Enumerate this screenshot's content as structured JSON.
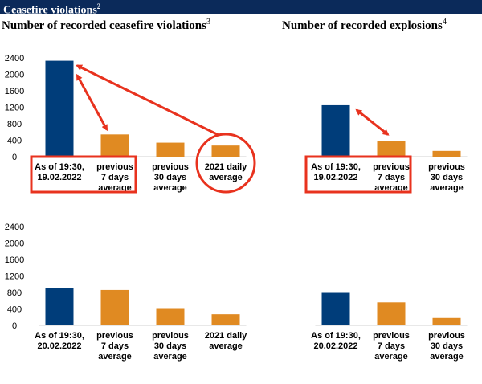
{
  "header": {
    "title": "Ceasefire violations",
    "footnote": "2"
  },
  "titles": {
    "violations": "Number of recorded ceasefire violations",
    "violations_footnote": "3",
    "explosions": "Number of recorded explosions",
    "explosions_footnote": "4"
  },
  "colors": {
    "current": "#003d7a",
    "past": "#e08a22",
    "highlight": "#e8321e"
  },
  "chart_data": [
    {
      "type": "bar",
      "title": "Number of recorded ceasefire violations",
      "categories": [
        [
          "As of 19:30,",
          "19.02.2022"
        ],
        [
          "previous",
          "7 days",
          "average"
        ],
        [
          "previous",
          "30 days",
          "average"
        ],
        [
          "2021 daily",
          "average"
        ]
      ],
      "values": [
        2330,
        540,
        340,
        270
      ],
      "ylim": [
        0,
        2400
      ],
      "yticks": [
        0,
        400,
        800,
        1200,
        1600,
        2000,
        2400
      ],
      "show_yaxis": true,
      "annotations": "Red boxes highlight the first two categories and a red circle highlights the 2021 daily average; red arrows link the current value to the comparisons"
    },
    {
      "type": "bar",
      "title": "Number of recorded explosions",
      "categories": [
        [
          "As of 19:30,",
          "19.02.2022"
        ],
        [
          "previous",
          "7 days",
          "average"
        ],
        [
          "previous",
          "30 days",
          "average"
        ]
      ],
      "values": [
        1250,
        380,
        140
      ],
      "ylim": [
        0,
        2400
      ],
      "show_yaxis": false
    },
    {
      "type": "bar",
      "title": "Number of recorded ceasefire violations",
      "categories": [
        [
          "As of 19:30,",
          "20.02.2022"
        ],
        [
          "previous",
          "7 days",
          "average"
        ],
        [
          "previous",
          "30 days",
          "average"
        ],
        [
          "2021 daily",
          "average"
        ]
      ],
      "values": [
        900,
        860,
        400,
        270
      ],
      "ylim": [
        0,
        2400
      ],
      "yticks": [
        0,
        400,
        800,
        1200,
        1600,
        2000,
        2400
      ],
      "show_yaxis": true
    },
    {
      "type": "bar",
      "title": "Number of recorded explosions",
      "categories": [
        [
          "As of 19:30,",
          "20.02.2022"
        ],
        [
          "previous",
          "7 days",
          "average"
        ],
        [
          "previous",
          "30 days",
          "average"
        ]
      ],
      "values": [
        790,
        560,
        180
      ],
      "ylim": [
        0,
        2400
      ],
      "show_yaxis": false
    }
  ]
}
